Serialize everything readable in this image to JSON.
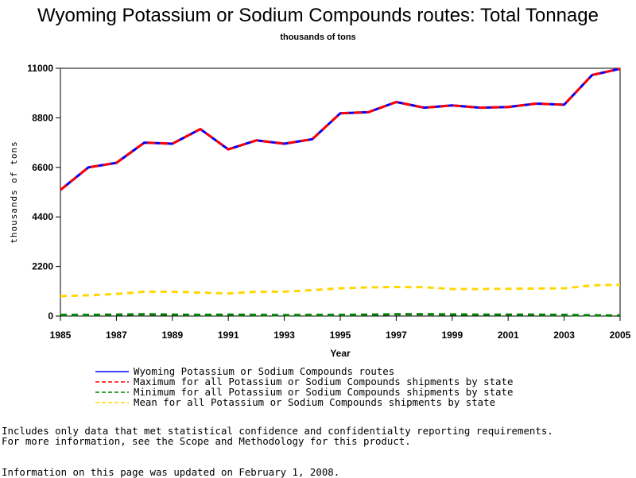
{
  "title": "Wyoming Potassium or Sodium Compounds routes: Total Tonnage",
  "subtitle": "thousands of tons",
  "notes": {
    "line1": "Includes only data that met statistical confidence and confidentialty reporting requirements.",
    "line2": "For more information, see the Scope and Methodology for this product.",
    "updated": "Information on this page was updated on February 1, 2008."
  },
  "chart_data": {
    "type": "line",
    "title": "Wyoming Potassium or Sodium Compounds routes: Total Tonnage",
    "subtitle": "thousands of tons",
    "xlabel": "Year",
    "ylabel": "thousands of tons",
    "xlim": [
      1985,
      2005
    ],
    "ylim": [
      0,
      11000
    ],
    "x_ticks": [
      "1985",
      "1987",
      "1989",
      "1991",
      "1993",
      "1995",
      "1997",
      "1999",
      "2001",
      "2003",
      "2005"
    ],
    "y_ticks": [
      "0",
      "2200",
      "4400",
      "6600",
      "8800",
      "11000"
    ],
    "grid": false,
    "legend_position": "bottom",
    "x": [
      1985,
      1986,
      1987,
      1988,
      1989,
      1990,
      1991,
      1992,
      1993,
      1994,
      1995,
      1996,
      1997,
      1998,
      1999,
      2000,
      2001,
      2002,
      2003,
      2004,
      2005
    ],
    "series": [
      {
        "name": "Wyoming Potassium or Sodium Compounds routes",
        "color": "#0000ff",
        "dash": "solid",
        "values": [
          5600,
          6600,
          6800,
          7700,
          7650,
          8300,
          7400,
          7800,
          7650,
          7850,
          9000,
          9050,
          9500,
          9250,
          9350,
          9250,
          9280,
          9430,
          9380,
          10700,
          10980
        ]
      },
      {
        "name": "Maximum for all Potassium or Sodium Compounds shipments by state",
        "color": "#ff0000",
        "dash": "dashed",
        "values": [
          5600,
          6600,
          6800,
          7700,
          7650,
          8300,
          7400,
          7800,
          7650,
          7850,
          9000,
          9050,
          9500,
          9250,
          9350,
          9250,
          9280,
          9430,
          9380,
          10700,
          10980
        ]
      },
      {
        "name": "Minimum for all Potassium or Sodium Compounds shipments by state",
        "color": "#008000",
        "dash": "dashed",
        "values": [
          50,
          50,
          60,
          80,
          60,
          50,
          60,
          50,
          40,
          50,
          50,
          60,
          80,
          80,
          70,
          60,
          60,
          60,
          50,
          30,
          20
        ]
      },
      {
        "name": "Mean for all Potassium or Sodium Compounds shipments by state",
        "color": "#ffd700",
        "dash": "dashed",
        "values": [
          880,
          920,
          980,
          1080,
          1080,
          1040,
          1000,
          1080,
          1080,
          1150,
          1230,
          1270,
          1290,
          1280,
          1200,
          1200,
          1210,
          1220,
          1230,
          1360,
          1390
        ]
      }
    ]
  }
}
